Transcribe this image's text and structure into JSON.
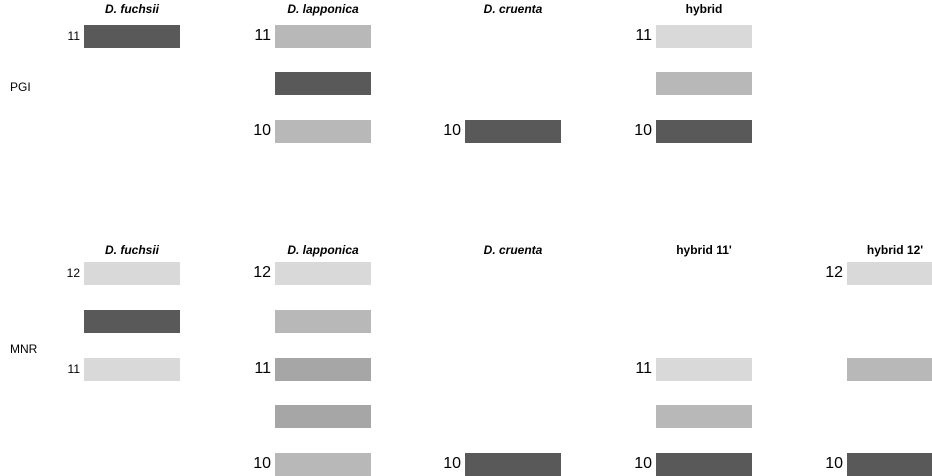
{
  "panels": [
    {
      "locus": "PGI",
      "columns": [
        {
          "header": "D. fuchsii",
          "italic": true,
          "bands": [
            {
              "label": "11",
              "color": "#595959"
            }
          ]
        },
        {
          "header": "D. lapponica",
          "italic": true,
          "bands": [
            {
              "label": "11",
              "color": "#b8b8b8"
            },
            {
              "label": "",
              "color": "#595959"
            },
            {
              "label": "10",
              "color": "#b8b8b8"
            }
          ]
        },
        {
          "header": "D. cruenta",
          "italic": true,
          "bands": [
            {
              "label": "10",
              "color": "#595959"
            }
          ]
        },
        {
          "header": "hybrid",
          "italic": false,
          "bands": [
            {
              "label": "11",
              "color": "#d9d9d9"
            },
            {
              "label": "",
              "color": "#b8b8b8"
            },
            {
              "label": "10",
              "color": "#595959"
            }
          ]
        }
      ]
    },
    {
      "locus": "MNR",
      "columns": [
        {
          "header": "D. fuchsii",
          "italic": true,
          "bands": [
            {
              "label": "12",
              "color": "#d9d9d9"
            },
            {
              "label": "",
              "color": "#595959"
            },
            {
              "label": "11",
              "color": "#d9d9d9"
            }
          ]
        },
        {
          "header": "D. lapponica",
          "italic": true,
          "bands": [
            {
              "label": "12",
              "color": "#d9d9d9"
            },
            {
              "label": "",
              "color": "#b8b8b8"
            },
            {
              "label": "11",
              "color": "#a6a6a6"
            },
            {
              "label": "",
              "color": "#a6a6a6"
            },
            {
              "label": "10",
              "color": "#b8b8b8"
            }
          ]
        },
        {
          "header": "D. cruenta",
          "italic": true,
          "bands": [
            {
              "label": "10",
              "color": "#595959"
            }
          ]
        },
        {
          "header": "hybrid 11'",
          "italic": false,
          "bands": [
            {
              "label": "11",
              "color": "#d9d9d9"
            },
            {
              "label": "",
              "color": "#b8b8b8"
            },
            {
              "label": "10",
              "color": "#595959"
            }
          ]
        },
        {
          "header": "hybrid 12'",
          "italic": false,
          "bands": [
            {
              "label": "12",
              "color": "#d9d9d9"
            },
            {
              "label": "",
              "color": "#b8b8b8"
            },
            {
              "label": "10",
              "color": "#595959"
            }
          ]
        }
      ]
    }
  ]
}
